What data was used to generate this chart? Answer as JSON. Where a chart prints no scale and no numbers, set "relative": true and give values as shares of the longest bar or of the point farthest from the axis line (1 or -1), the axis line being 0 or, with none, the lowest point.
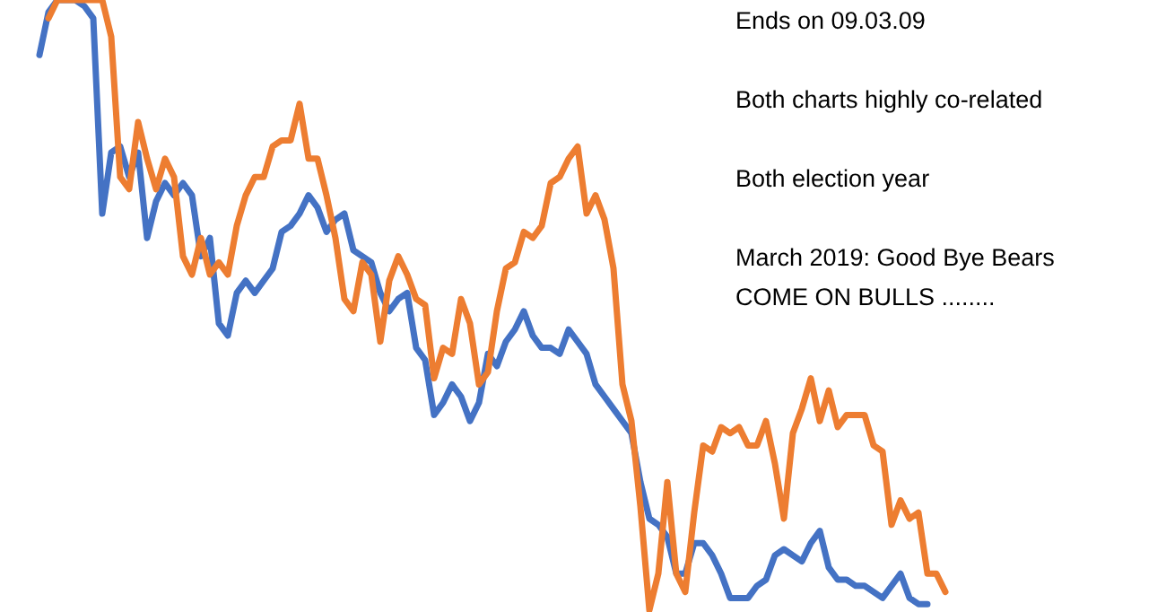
{
  "chart_data": {
    "type": "line",
    "relative": true,
    "categories": [
      null,
      null,
      null,
      null,
      null,
      null,
      null,
      null,
      null,
      null,
      null,
      null,
      null,
      null,
      null,
      null,
      null,
      null,
      null,
      null,
      null,
      null,
      null,
      null,
      null,
      null,
      null,
      null,
      null,
      null,
      null,
      null,
      null,
      null,
      null,
      null,
      null,
      null,
      null,
      null,
      null,
      null,
      null,
      null,
      null,
      null,
      null,
      null,
      null,
      null,
      null,
      null,
      null,
      null,
      null,
      null,
      null,
      null,
      null,
      null,
      null,
      null,
      null,
      null,
      null,
      null,
      null,
      null,
      null,
      null,
      null,
      null,
      null,
      null,
      null,
      null,
      null,
      null,
      null,
      null,
      null,
      null,
      null,
      null,
      null,
      null,
      null,
      null,
      null,
      null,
      null,
      null,
      null,
      null,
      null,
      null,
      null,
      null,
      null,
      null,
      null,
      null
    ],
    "series": [
      {
        "color": "#4472c4",
        "values": [
          0.91,
          0.98,
          1,
          1,
          1,
          0.99,
          0.97,
          0.65,
          0.75,
          0.76,
          0.71,
          0.75,
          0.61,
          0.67,
          0.7,
          0.68,
          0.7,
          0.68,
          0.58,
          0.61,
          0.47,
          0.45,
          0.52,
          0.54,
          0.52,
          0.54,
          0.56,
          0.62,
          0.63,
          0.65,
          0.68,
          0.66,
          0.62,
          0.64,
          0.65,
          0.59,
          0.58,
          0.57,
          0.52,
          0.49,
          0.51,
          0.52,
          0.43,
          0.41,
          0.32,
          0.34,
          0.37,
          0.35,
          0.31,
          0.34,
          0.42,
          0.4,
          0.44,
          0.46,
          0.49,
          0.45,
          0.43,
          0.43,
          0.42,
          0.46,
          0.44,
          0.42,
          0.37,
          0.35,
          0.33,
          0.31,
          0.29,
          0.21,
          0.15,
          0.14,
          0.12,
          0.06,
          0.06,
          0.11,
          0.11,
          0.09,
          0.06,
          0.02,
          0.02,
          0.02,
          0.04,
          0.05,
          0.09,
          0.1,
          0.09,
          0.08,
          0.11,
          0.13,
          0.07,
          0.05,
          0.05,
          0.04,
          0.04,
          0.03,
          0.02,
          0.04,
          0.06,
          0.02,
          0.01,
          0.01,
          null,
          null
        ]
      },
      {
        "color": "#ed7d31",
        "values": [
          null,
          0.97,
          1,
          1,
          1,
          1,
          1,
          1,
          0.94,
          0.71,
          0.69,
          0.8,
          0.74,
          0.69,
          0.74,
          0.71,
          0.58,
          0.55,
          0.61,
          0.55,
          0.57,
          0.55,
          0.63,
          0.68,
          0.71,
          0.71,
          0.76,
          0.77,
          0.77,
          0.83,
          0.74,
          0.74,
          0.68,
          0.61,
          0.51,
          0.49,
          0.57,
          0.55,
          0.44,
          0.54,
          0.58,
          0.55,
          0.51,
          0.5,
          0.38,
          0.43,
          0.42,
          0.51,
          0.47,
          0.37,
          0.39,
          0.49,
          0.56,
          0.57,
          0.62,
          0.61,
          0.63,
          0.7,
          0.71,
          0.74,
          0.76,
          0.65,
          0.68,
          0.64,
          0.56,
          0.37,
          0.31,
          0.17,
          0,
          0.06,
          0.21,
          0.06,
          0.03,
          0.16,
          0.27,
          0.26,
          0.3,
          0.29,
          0.3,
          0.27,
          0.27,
          0.31,
          0.24,
          0.15,
          0.29,
          0.33,
          0.38,
          0.31,
          0.36,
          0.3,
          0.32,
          0.32,
          0.32,
          0.27,
          0.26,
          0.14,
          0.18,
          0.15,
          0.16,
          0.06,
          0.06,
          0.03
        ]
      }
    ],
    "annotations": [
      "Ends on 09.03.09",
      "Both charts highly co-related",
      "Both election year",
      "March 2019: Good Bye Bears\nCOME ON BULLS ........"
    ]
  }
}
